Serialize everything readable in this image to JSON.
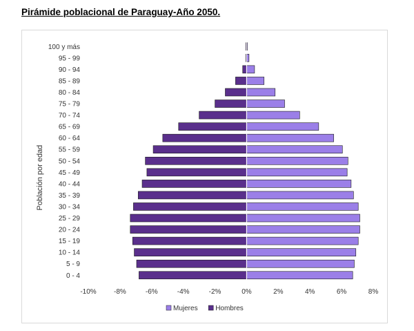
{
  "page_title": "Pirámide poblacional de Paraguay-Año 2050.",
  "chart_data": {
    "type": "bar",
    "orientation": "horizontal",
    "ylabel": "Población por edad",
    "xlabel": "",
    "categories": [
      "0 - 4",
      "5 - 9",
      "10 - 14",
      "15 - 19",
      "20 - 24",
      "25 - 29",
      "30 - 34",
      "35 - 39",
      "40 - 44",
      "45 - 49",
      "50 - 54",
      "55 - 59",
      "60 - 64",
      "65 - 69",
      "70 - 74",
      "75 - 79",
      "80 - 84",
      "85 - 89",
      "90 - 94",
      "95 - 99",
      "100 y más"
    ],
    "series": [
      {
        "name": "Mujeres",
        "color": "#9b7fe8",
        "values": [
          6.7,
          6.8,
          6.9,
          7.05,
          7.15,
          7.15,
          7.05,
          6.75,
          6.6,
          6.35,
          6.4,
          6.05,
          5.5,
          4.55,
          3.35,
          2.4,
          1.8,
          1.1,
          0.5,
          0.15,
          0.05
        ]
      },
      {
        "name": "Hombres",
        "color": "#5a2f8c",
        "values": [
          -6.8,
          -6.95,
          -7.1,
          -7.2,
          -7.35,
          -7.35,
          -7.15,
          -6.85,
          -6.6,
          -6.3,
          -6.4,
          -5.9,
          -5.3,
          -4.3,
          -3.0,
          -2.0,
          -1.35,
          -0.7,
          -0.25,
          -0.05,
          -0.05
        ]
      }
    ],
    "xlim": [
      -10,
      8
    ],
    "xticks": [
      "-10%",
      "-8%",
      "-6%",
      "-4%",
      "-2%",
      "0%",
      "2%",
      "4%",
      "6%",
      "8%"
    ],
    "xtick_values": [
      -10,
      -8,
      -6,
      -4,
      -2,
      0,
      2,
      4,
      6,
      8
    ],
    "grid": false,
    "legend_position": "bottom",
    "legend": [
      "Mujeres",
      "Hombres"
    ]
  }
}
